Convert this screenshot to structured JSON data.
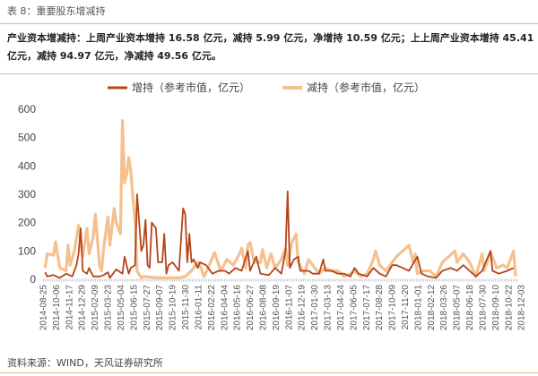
{
  "caption": "表 8：重要股东增减持",
  "summary": "产业资本增减持：上周产业资本增持 16.58 亿元，减持 5.99 亿元，净增持 10.59 亿元；上上周产业资本增持 45.41 亿元，减持 94.97 亿元，净减持 49.56 亿元。",
  "source": "资料来源：WIND，天风证券研究所",
  "colors": {
    "increase": "#b5441a",
    "decrease": "#f5c08e",
    "rule": "#d8b98f"
  },
  "chart_data": {
    "type": "line",
    "title": "",
    "xlabel": "",
    "ylabel": "",
    "x_unit": "period index (weekly)",
    "xlim": [
      0,
      226
    ],
    "ylim": [
      0,
      600
    ],
    "yticks": [
      0,
      100,
      200,
      300,
      400,
      500,
      600
    ],
    "tick_step": 6.18,
    "grid": false,
    "legend_position": "top-center",
    "xtick_labels": [
      "2014-08-25",
      "2014-10-06",
      "2014-11-17",
      "2014-12-29",
      "2015-02-09",
      "2015-03-23",
      "2015-05-04",
      "2015-06-15",
      "2015-07-27",
      "2015-09-07",
      "2015-10-19",
      "2015-11-30",
      "2016-01-11",
      "2016-02-22",
      "2016-04-04",
      "2016-05-16",
      "2016-06-27",
      "2016-08-08",
      "2016-09-19",
      "2016-11-07",
      "2016-12-19",
      "2017-01-30",
      "2017-03-13",
      "2017-04-24",
      "2017-06-05",
      "2017-07-17",
      "2017-08-28",
      "2017-10-09",
      "2017-11-20",
      "2018-01-01",
      "2018-02-12",
      "2018-03-26",
      "2018-05-07",
      "2018-06-18",
      "2018-07-30",
      "2018-09-10",
      "2018-10-22",
      "2018-12-03"
    ],
    "series": [
      {
        "name": "减持（参考市值，亿元）",
        "points": [
          [
            1,
            40
          ],
          [
            2,
            90
          ],
          [
            5,
            85
          ],
          [
            6,
            132
          ],
          [
            8,
            40
          ],
          [
            11,
            30
          ],
          [
            12,
            120
          ],
          [
            13,
            50
          ],
          [
            15,
            100
          ],
          [
            17,
            190
          ],
          [
            19,
            80
          ],
          [
            21,
            180
          ],
          [
            22,
            90
          ],
          [
            24,
            150
          ],
          [
            25,
            230
          ],
          [
            27,
            50
          ],
          [
            28,
            30
          ],
          [
            29,
            110
          ],
          [
            31,
            220
          ],
          [
            32,
            120
          ],
          [
            34,
            250
          ],
          [
            35,
            200
          ],
          [
            37,
            160
          ],
          [
            38,
            560
          ],
          [
            39,
            340
          ],
          [
            40,
            370
          ],
          [
            41,
            430
          ],
          [
            42,
            380
          ],
          [
            44,
            200
          ],
          [
            45,
            30
          ],
          [
            47,
            5
          ],
          [
            48,
            10
          ],
          [
            55,
            5
          ],
          [
            65,
            5
          ],
          [
            68,
            10
          ],
          [
            71,
            30
          ],
          [
            74,
            60
          ],
          [
            75,
            50
          ],
          [
            77,
            10
          ],
          [
            79,
            40
          ],
          [
            82,
            95
          ],
          [
            85,
            30
          ],
          [
            88,
            70
          ],
          [
            91,
            50
          ],
          [
            94,
            90
          ],
          [
            95,
            110
          ],
          [
            97,
            40
          ],
          [
            98,
            120
          ],
          [
            99,
            130
          ],
          [
            101,
            60
          ],
          [
            104,
            60
          ],
          [
            105,
            105
          ],
          [
            107,
            40
          ],
          [
            109,
            90
          ],
          [
            111,
            40
          ],
          [
            114,
            70
          ],
          [
            116,
            110
          ],
          [
            117,
            50
          ],
          [
            119,
            130
          ],
          [
            121,
            160
          ],
          [
            122,
            60
          ],
          [
            125,
            20
          ],
          [
            127,
            70
          ],
          [
            129,
            50
          ],
          [
            132,
            20
          ],
          [
            135,
            40
          ],
          [
            138,
            30
          ],
          [
            141,
            30
          ],
          [
            144,
            10
          ],
          [
            147,
            20
          ],
          [
            149,
            30
          ],
          [
            152,
            10
          ],
          [
            155,
            20
          ],
          [
            158,
            70
          ],
          [
            159,
            100
          ],
          [
            161,
            50
          ],
          [
            164,
            30
          ],
          [
            167,
            60
          ],
          [
            169,
            80
          ],
          [
            172,
            100
          ],
          [
            175,
            120
          ],
          [
            177,
            60
          ],
          [
            178,
            90
          ],
          [
            179,
            20
          ],
          [
            182,
            30
          ],
          [
            185,
            30
          ],
          [
            188,
            10
          ],
          [
            191,
            60
          ],
          [
            194,
            80
          ],
          [
            197,
            100
          ],
          [
            198,
            60
          ],
          [
            201,
            90
          ],
          [
            204,
            60
          ],
          [
            207,
            10
          ],
          [
            210,
            90
          ],
          [
            211,
            30
          ],
          [
            214,
            95
          ],
          [
            217,
            40
          ],
          [
            220,
            50
          ],
          [
            222,
            40
          ],
          [
            225,
            100
          ],
          [
            226,
            10
          ]
        ]
      },
      {
        "name": "增持（参考市值，亿元）",
        "points": [
          [
            1,
            25
          ],
          [
            2,
            10
          ],
          [
            5,
            15
          ],
          [
            8,
            5
          ],
          [
            11,
            20
          ],
          [
            14,
            10
          ],
          [
            16,
            50
          ],
          [
            17,
            90
          ],
          [
            18,
            180
          ],
          [
            19,
            30
          ],
          [
            21,
            20
          ],
          [
            22,
            40
          ],
          [
            24,
            10
          ],
          [
            27,
            10
          ],
          [
            29,
            15
          ],
          [
            31,
            25
          ],
          [
            32,
            5
          ],
          [
            35,
            35
          ],
          [
            38,
            20
          ],
          [
            39,
            80
          ],
          [
            41,
            20
          ],
          [
            42,
            40
          ],
          [
            44,
            50
          ],
          [
            45,
            300
          ],
          [
            47,
            100
          ],
          [
            48,
            120
          ],
          [
            49,
            210
          ],
          [
            50,
            50
          ],
          [
            51,
            40
          ],
          [
            52,
            200
          ],
          [
            54,
            180
          ],
          [
            55,
            60
          ],
          [
            57,
            60
          ],
          [
            58,
            160
          ],
          [
            59,
            20
          ],
          [
            60,
            50
          ],
          [
            62,
            60
          ],
          [
            64,
            40
          ],
          [
            65,
            30
          ],
          [
            67,
            250
          ],
          [
            68,
            230
          ],
          [
            69,
            60
          ],
          [
            70,
            160
          ],
          [
            71,
            60
          ],
          [
            72,
            70
          ],
          [
            74,
            40
          ],
          [
            75,
            60
          ],
          [
            78,
            50
          ],
          [
            81,
            20
          ],
          [
            84,
            30
          ],
          [
            87,
            30
          ],
          [
            89,
            20
          ],
          [
            92,
            40
          ],
          [
            95,
            30
          ],
          [
            98,
            100
          ],
          [
            99,
            30
          ],
          [
            102,
            80
          ],
          [
            104,
            20
          ],
          [
            108,
            15
          ],
          [
            111,
            40
          ],
          [
            114,
            20
          ],
          [
            116,
            100
          ],
          [
            117,
            310
          ],
          [
            118,
            40
          ],
          [
            120,
            70
          ],
          [
            122,
            80
          ],
          [
            123,
            30
          ],
          [
            127,
            30
          ],
          [
            129,
            20
          ],
          [
            132,
            20
          ],
          [
            134,
            70
          ],
          [
            135,
            30
          ],
          [
            138,
            30
          ],
          [
            141,
            20
          ],
          [
            144,
            20
          ],
          [
            147,
            10
          ],
          [
            149,
            40
          ],
          [
            151,
            20
          ],
          [
            155,
            10
          ],
          [
            158,
            40
          ],
          [
            161,
            20
          ],
          [
            164,
            10
          ],
          [
            167,
            50
          ],
          [
            169,
            50
          ],
          [
            172,
            40
          ],
          [
            175,
            30
          ],
          [
            179,
            80
          ],
          [
            181,
            20
          ],
          [
            184,
            10
          ],
          [
            188,
            5
          ],
          [
            191,
            30
          ],
          [
            195,
            40
          ],
          [
            198,
            30
          ],
          [
            201,
            50
          ],
          [
            204,
            30
          ],
          [
            207,
            10
          ],
          [
            210,
            30
          ],
          [
            214,
            100
          ],
          [
            215,
            30
          ],
          [
            218,
            20
          ],
          [
            222,
            30
          ],
          [
            225,
            40
          ]
        ]
      }
    ]
  }
}
